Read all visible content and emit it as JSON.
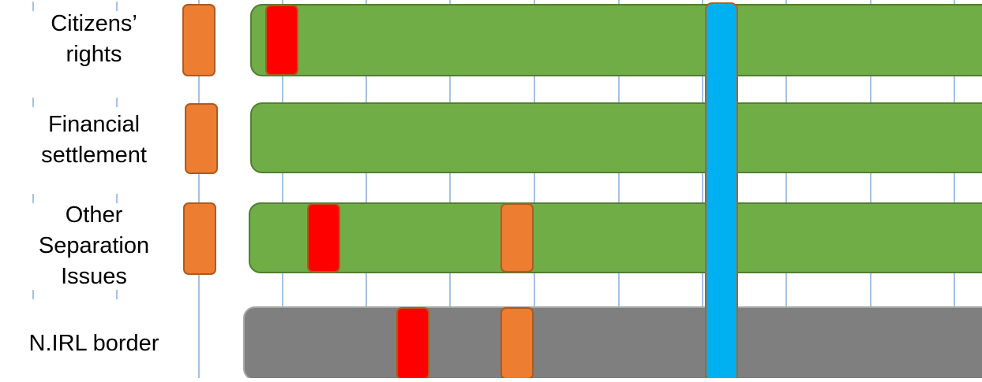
{
  "colors": {
    "gridline": "#4A86C8",
    "bar_green": "#70AD47",
    "bar_green_border": "#507E32",
    "bar_gray": "#7F7F7F",
    "bar_gray_border": "#A6A6A6",
    "marker_orange": "#ED7D31",
    "marker_red": "#FF0000",
    "marker_border": "#AE5A21",
    "highlight_blue": "#00B0F0",
    "highlight_blue_border": "#C55A11"
  },
  "rows": [
    {
      "id": "citizens-rights",
      "label": "Citizens’\nrights",
      "bar_color": "green",
      "status_marker": "orange",
      "markers": [
        {
          "color": "red"
        }
      ]
    },
    {
      "id": "financial-settlement",
      "label": "Financial\nsettlement",
      "bar_color": "green",
      "status_marker": "orange",
      "markers": []
    },
    {
      "id": "other-separation-issues",
      "label": "Other\nSeparation\nIssues",
      "bar_color": "green",
      "status_marker": "orange",
      "markers": [
        {
          "color": "red"
        },
        {
          "color": "orange"
        }
      ]
    },
    {
      "id": "nirl-border",
      "label": "N.IRL border",
      "bar_color": "gray",
      "status_marker": null,
      "markers": [
        {
          "color": "red"
        },
        {
          "color": "orange"
        }
      ]
    }
  ]
}
